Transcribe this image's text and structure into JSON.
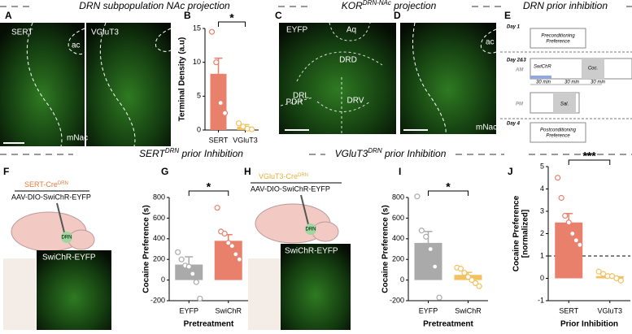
{
  "headers": [
    {
      "text": "DRN subpopulation NAc projection"
    },
    {
      "text": "KOR",
      "sup": "DRN-NAc",
      "rest": " projection"
    },
    {
      "text": "DRN prior inhibition"
    },
    {
      "text": "SERT",
      "sup": "DRN",
      "rest": " prior Inhibition"
    },
    {
      "text": "VGluT3",
      "sup": "DRN",
      "rest": " prior Inhibition"
    }
  ],
  "panel_letters": [
    "A",
    "B",
    "C",
    "D",
    "E",
    "F",
    "G",
    "H",
    "I",
    "J"
  ],
  "image_labels": {
    "a": [
      "SERT",
      "VGluT3",
      "ac",
      "mNac"
    ],
    "c": [
      "EYFP",
      "Aq",
      "DRD",
      "DRL",
      "PDR",
      "DRV"
    ],
    "d": [
      "ac",
      "mNac"
    ],
    "f": {
      "cre": "SERT-Cre",
      "cre_sup": "DRN",
      "virus": "AAV-DIO-SwiChR-EYFP",
      "site": "DRN",
      "image": "SwiChR-EYFP"
    },
    "h": {
      "cre": "VGluT3-Cre",
      "cre_sup": "DRN",
      "virus": "AAV-DIO-SwiChR-EYFP",
      "site": "DRN",
      "image": "SwiChR-EYFP"
    }
  },
  "timeline": {
    "day1": "Day 1",
    "pre": [
      "Preconditioning",
      "Preference"
    ],
    "day23": "Day 2&3",
    "am": "AM",
    "swichr": "SwiChR",
    "coc": "Coc.",
    "intervals": [
      "30 min",
      "30 min",
      "30 min"
    ],
    "pm": "PM",
    "sal": "Sal.",
    "day4": "Day 4",
    "post": [
      "Postconditioning",
      "Preference"
    ]
  },
  "chart_data": [
    {
      "type": "bar",
      "y_label": [
        "Terminal Density (a.u)"
      ],
      "categories": [
        "SERT",
        "VGluT3"
      ],
      "values": [
        8.3,
        0.5
      ],
      "errors": [
        2.3,
        0.3
      ],
      "colors": [
        "#e9806b",
        "#f3c15f"
      ],
      "points": [
        [
          14.5,
          10,
          4,
          2.5
        ],
        [
          1,
          0.5,
          0.2,
          0.1
        ]
      ],
      "ylim": [
        0,
        15
      ],
      "yticks": [
        0,
        5,
        10,
        15
      ],
      "significance": "*"
    },
    {
      "type": "bar",
      "y_label": [
        "Cocaine Preference (s)"
      ],
      "x_label": "Pretreatment",
      "categories": [
        "EYFP",
        "SwiChR"
      ],
      "values": [
        150,
        380
      ],
      "errors": [
        75,
        60
      ],
      "colors": [
        "#aaaaaa",
        "#e9806b"
      ],
      "points": [
        [
          270,
          200,
          140,
          130,
          60,
          -20,
          -180
        ],
        [
          700,
          470,
          450,
          360,
          330,
          250,
          200
        ]
      ],
      "ylim": [
        -200,
        800
      ],
      "yticks": [
        -200,
        0,
        200,
        400,
        600,
        800
      ],
      "significance": "*"
    },
    {
      "type": "bar",
      "y_label": [
        "Cocaine Preference (s)"
      ],
      "x_label": "Pretreatment",
      "categories": [
        "EYFP",
        "SwiChR"
      ],
      "values": [
        360,
        50
      ],
      "errors": [
        110,
        25
      ],
      "colors": [
        "#aaaaaa",
        "#f3c15f"
      ],
      "points": [
        [
          810,
          480,
          420,
          300,
          130,
          -170
        ],
        [
          120,
          110,
          70,
          30,
          0,
          -30,
          -60
        ]
      ],
      "ylim": [
        -200,
        800
      ],
      "yticks": [
        -200,
        0,
        200,
        400,
        600,
        800
      ],
      "significance": "*"
    },
    {
      "type": "bar",
      "y_label": [
        "Cocaine Preference",
        "[normalized]"
      ],
      "x_label": "Prior Inhibition",
      "categories": [
        "SERT",
        "VGluT3"
      ],
      "values": [
        2.5,
        0.1
      ],
      "errors": [
        0.4,
        0.05
      ],
      "colors": [
        "#e9806b",
        "#f3c15f"
      ],
      "points": [
        [
          4.5,
          3.6,
          2.8,
          2.5,
          2.0,
          1.7,
          1.5
        ],
        [
          0.3,
          0.2,
          0.1,
          0.1,
          0.0,
          -0.1
        ]
      ],
      "ylim": [
        -1,
        5
      ],
      "yticks": [
        -1,
        0,
        1,
        2,
        3,
        4,
        5
      ],
      "reference_line": 1,
      "significance": "***"
    }
  ]
}
